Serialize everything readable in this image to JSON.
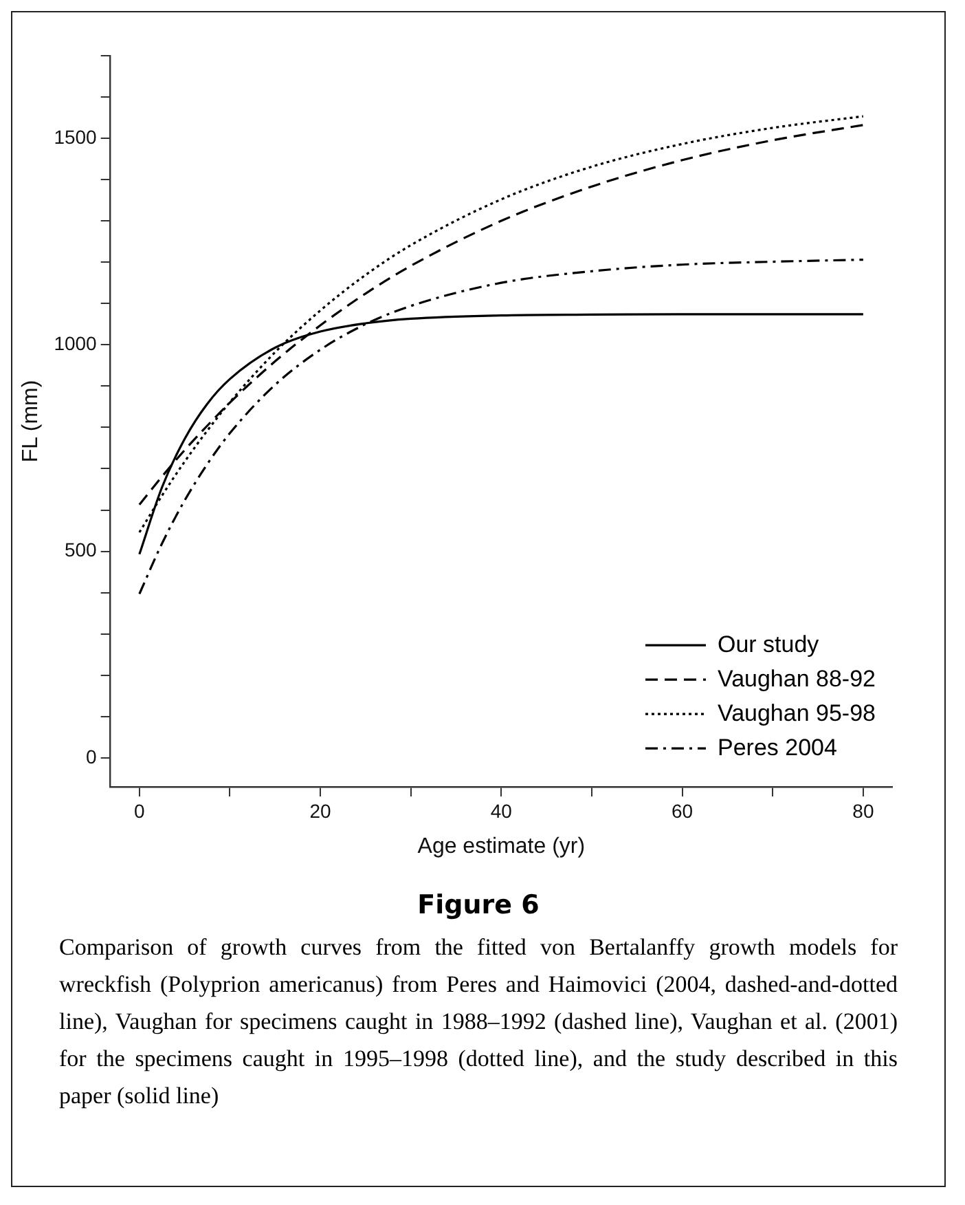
{
  "chart_data": {
    "type": "line",
    "title": "Figure 6",
    "xlabel": "Age estimate (yr)",
    "ylabel": "FL (mm)",
    "x": [
      0,
      2.5,
      5,
      7.5,
      10,
      15,
      20,
      25,
      30,
      40,
      50,
      60,
      70,
      80
    ],
    "series": [
      {
        "name": "Our study",
        "color": "#000000",
        "line_style": "solid",
        "values": [
          493,
          655,
          772,
          857,
          917,
          993,
          1032,
          1052,
          1063,
          1071,
          1073,
          1074,
          1074,
          1074
        ]
      },
      {
        "name": "Vaughan 88-92",
        "color": "#000000",
        "line_style": "dashed",
        "values": [
          613,
          681,
          745,
          804,
          860,
          960,
          1047,
          1124,
          1191,
          1300,
          1383,
          1447,
          1495,
          1532
        ]
      },
      {
        "name": "Vaughan 95-98",
        "color": "#000000",
        "line_style": "dotted",
        "values": [
          546,
          635,
          717,
          792,
          861,
          982,
          1083,
          1169,
          1241,
          1352,
          1431,
          1486,
          1525,
          1553
        ]
      },
      {
        "name": "Peres 2004",
        "color": "#000000",
        "line_style": "dashdot",
        "values": [
          397,
          519,
          623,
          711,
          786,
          903,
          988,
          1050,
          1094,
          1150,
          1178,
          1194,
          1201,
          1206
        ]
      }
    ],
    "xlim": [
      -3.2,
      83.2
    ],
    "xticks": [
      0,
      {
        "value": 10,
        "label": null
      },
      20,
      {
        "value": 30,
        "label": null
      },
      40,
      {
        "value": 50,
        "label": null
      },
      60,
      {
        "value": 70,
        "label": null
      },
      80
    ],
    "ylim": [
      -70,
      1700
    ],
    "yticks": [
      0,
      {
        "value": 100,
        "label": null
      },
      {
        "value": 200,
        "label": null
      },
      {
        "value": 300,
        "label": null
      },
      {
        "value": 400,
        "label": null
      },
      500,
      {
        "value": 600,
        "label": null
      },
      {
        "value": 700,
        "label": null
      },
      {
        "value": 800,
        "label": null
      },
      {
        "value": 900,
        "label": null
      },
      1000,
      {
        "value": 1100,
        "label": null
      },
      {
        "value": 1200,
        "label": null
      },
      {
        "value": 1300,
        "label": null
      },
      {
        "value": 1400,
        "label": null
      },
      1500,
      {
        "value": 1600,
        "label": null
      },
      {
        "value": 1700,
        "label": null
      }
    ],
    "legend": "bottom right",
    "marker": "none",
    "grid": false,
    "annotations": [
      "Comparison of growth curves from the fitted von Bertalanffy growth models for wreckfish (Polyprion americanus) from Peres and Haimovici (2004, dashed-and-dotted line), Vaughan for specimens caught in 1988–1992 (dashed line), Vaughan et al. (2001) for the specimens caught in 1995–1998 (dotted line), and the study described in this paper (solid line)"
    ]
  }
}
